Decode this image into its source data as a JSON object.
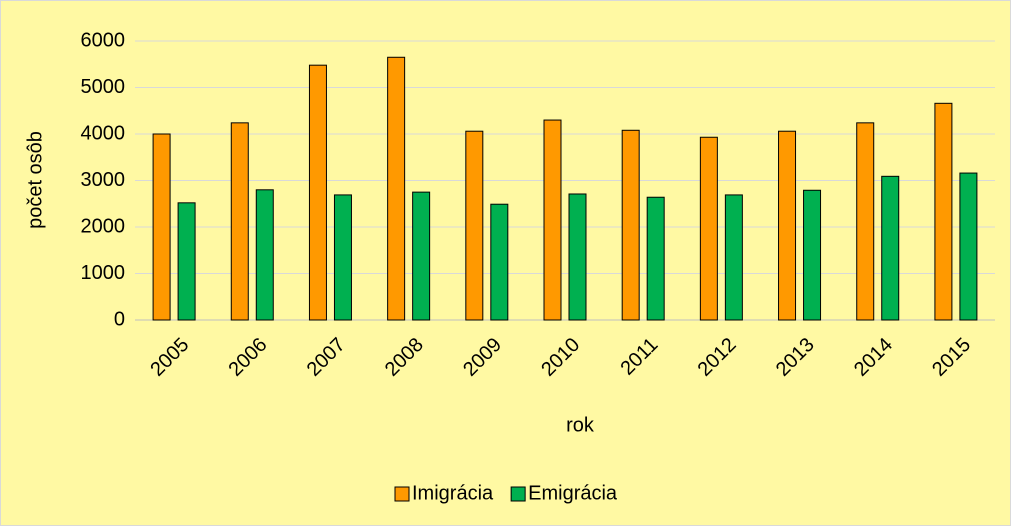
{
  "chart_data": {
    "type": "bar",
    "categories": [
      "2005",
      "2006",
      "2007",
      "2008",
      "2009",
      "2010",
      "2011",
      "2012",
      "2013",
      "2014",
      "2015"
    ],
    "series": [
      {
        "name": "Imigrácia",
        "color": "#ff9900",
        "values": [
          4000,
          4240,
          5480,
          5650,
          4060,
          4300,
          4080,
          3930,
          4060,
          4240,
          4660
        ]
      },
      {
        "name": "Emigrácia",
        "color": "#00b050",
        "values": [
          2520,
          2800,
          2690,
          2750,
          2490,
          2710,
          2640,
          2690,
          2790,
          3090,
          3160
        ]
      }
    ],
    "xlabel": "rok",
    "ylabel": "počet osôb",
    "ylim": [
      0,
      6000
    ],
    "yticks": [
      0,
      1000,
      2000,
      3000,
      4000,
      5000,
      6000
    ],
    "grid": true,
    "legend": "bottom"
  }
}
